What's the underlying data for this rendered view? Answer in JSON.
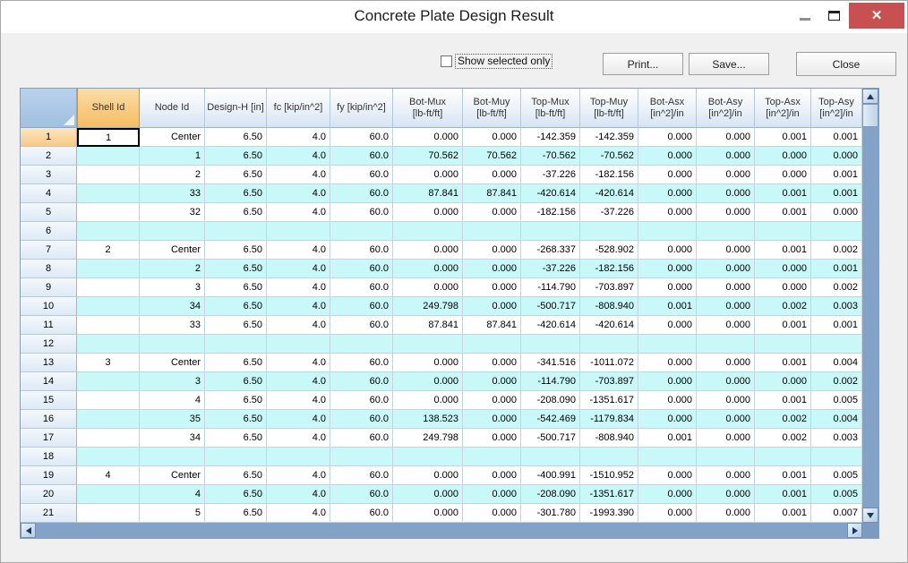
{
  "window": {
    "title": "Concrete Plate Design Result"
  },
  "toolbar": {
    "checkbox_label": "Show selected only",
    "checkbox_checked": false,
    "print_label": "Print...",
    "save_label": "Save...",
    "close_label": "Close"
  },
  "colors": {
    "selected_header_orange": "#f5bc63",
    "row_stripe_cyan": "#c9f8f8",
    "scrollbar_track_blue": "#82a3c7",
    "titlebar_close_red": "#c85050"
  },
  "grid": {
    "selection": {
      "selected_row_number": "1",
      "selected_column": "Shell Id",
      "active_cell_value": "1"
    },
    "columns": [
      "Shell Id",
      "Node Id",
      "Design-H [in]",
      "fc [kip/in^2]",
      "fy [kip/in^2]",
      "Bot-Mux\n[lb-ft/ft]",
      "Bot-Muy\n[lb-ft/ft]",
      "Top-Mux\n[lb-ft/ft]",
      "Top-Muy\n[lb-ft/ft]",
      "Bot-Asx\n[in^2]/in",
      "Bot-Asy\n[in^2]/in",
      "Top-Asx\n[in^2]/in",
      "Top-Asy\n[in^2]/in"
    ],
    "rows": [
      {
        "num": "1",
        "cells": [
          "1",
          "Center",
          "6.50",
          "4.0",
          "60.0",
          "0.000",
          "0.000",
          "-142.359",
          "-142.359",
          "0.000",
          "0.000",
          "0.001",
          "0.001"
        ]
      },
      {
        "num": "2",
        "cells": [
          "",
          "1",
          "6.50",
          "4.0",
          "60.0",
          "70.562",
          "70.562",
          "-70.562",
          "-70.562",
          "0.000",
          "0.000",
          "0.000",
          "0.000"
        ]
      },
      {
        "num": "3",
        "cells": [
          "",
          "2",
          "6.50",
          "4.0",
          "60.0",
          "0.000",
          "0.000",
          "-37.226",
          "-182.156",
          "0.000",
          "0.000",
          "0.000",
          "0.001"
        ]
      },
      {
        "num": "4",
        "cells": [
          "",
          "33",
          "6.50",
          "4.0",
          "60.0",
          "87.841",
          "87.841",
          "-420.614",
          "-420.614",
          "0.000",
          "0.000",
          "0.001",
          "0.001"
        ]
      },
      {
        "num": "5",
        "cells": [
          "",
          "32",
          "6.50",
          "4.0",
          "60.0",
          "0.000",
          "0.000",
          "-182.156",
          "-37.226",
          "0.000",
          "0.000",
          "0.001",
          "0.000"
        ]
      },
      {
        "num": "6",
        "cells": [
          "",
          "",
          "",
          "",
          "",
          "",
          "",
          "",
          "",
          "",
          "",
          "",
          ""
        ]
      },
      {
        "num": "7",
        "cells": [
          "2",
          "Center",
          "6.50",
          "4.0",
          "60.0",
          "0.000",
          "0.000",
          "-268.337",
          "-528.902",
          "0.000",
          "0.000",
          "0.001",
          "0.002"
        ]
      },
      {
        "num": "8",
        "cells": [
          "",
          "2",
          "6.50",
          "4.0",
          "60.0",
          "0.000",
          "0.000",
          "-37.226",
          "-182.156",
          "0.000",
          "0.000",
          "0.000",
          "0.001"
        ]
      },
      {
        "num": "9",
        "cells": [
          "",
          "3",
          "6.50",
          "4.0",
          "60.0",
          "0.000",
          "0.000",
          "-114.790",
          "-703.897",
          "0.000",
          "0.000",
          "0.000",
          "0.002"
        ]
      },
      {
        "num": "10",
        "cells": [
          "",
          "34",
          "6.50",
          "4.0",
          "60.0",
          "249.798",
          "0.000",
          "-500.717",
          "-808.940",
          "0.001",
          "0.000",
          "0.002",
          "0.003"
        ]
      },
      {
        "num": "11",
        "cells": [
          "",
          "33",
          "6.50",
          "4.0",
          "60.0",
          "87.841",
          "87.841",
          "-420.614",
          "-420.614",
          "0.000",
          "0.000",
          "0.001",
          "0.001"
        ]
      },
      {
        "num": "12",
        "cells": [
          "",
          "",
          "",
          "",
          "",
          "",
          "",
          "",
          "",
          "",
          "",
          "",
          ""
        ]
      },
      {
        "num": "13",
        "cells": [
          "3",
          "Center",
          "6.50",
          "4.0",
          "60.0",
          "0.000",
          "0.000",
          "-341.516",
          "-1011.072",
          "0.000",
          "0.000",
          "0.001",
          "0.004"
        ]
      },
      {
        "num": "14",
        "cells": [
          "",
          "3",
          "6.50",
          "4.0",
          "60.0",
          "0.000",
          "0.000",
          "-114.790",
          "-703.897",
          "0.000",
          "0.000",
          "0.000",
          "0.002"
        ]
      },
      {
        "num": "15",
        "cells": [
          "",
          "4",
          "6.50",
          "4.0",
          "60.0",
          "0.000",
          "0.000",
          "-208.090",
          "-1351.617",
          "0.000",
          "0.000",
          "0.001",
          "0.005"
        ]
      },
      {
        "num": "16",
        "cells": [
          "",
          "35",
          "6.50",
          "4.0",
          "60.0",
          "138.523",
          "0.000",
          "-542.469",
          "-1179.834",
          "0.000",
          "0.000",
          "0.002",
          "0.004"
        ]
      },
      {
        "num": "17",
        "cells": [
          "",
          "34",
          "6.50",
          "4.0",
          "60.0",
          "249.798",
          "0.000",
          "-500.717",
          "-808.940",
          "0.001",
          "0.000",
          "0.002",
          "0.003"
        ]
      },
      {
        "num": "18",
        "cells": [
          "",
          "",
          "",
          "",
          "",
          "",
          "",
          "",
          "",
          "",
          "",
          "",
          ""
        ]
      },
      {
        "num": "19",
        "cells": [
          "4",
          "Center",
          "6.50",
          "4.0",
          "60.0",
          "0.000",
          "0.000",
          "-400.991",
          "-1510.952",
          "0.000",
          "0.000",
          "0.001",
          "0.005"
        ]
      },
      {
        "num": "20",
        "cells": [
          "",
          "4",
          "6.50",
          "4.0",
          "60.0",
          "0.000",
          "0.000",
          "-208.090",
          "-1351.617",
          "0.000",
          "0.000",
          "0.001",
          "0.005"
        ]
      },
      {
        "num": "21",
        "cells": [
          "",
          "5",
          "6.50",
          "4.0",
          "60.0",
          "0.000",
          "0.000",
          "-301.780",
          "-1993.390",
          "0.000",
          "0.000",
          "0.001",
          "0.007"
        ]
      }
    ]
  }
}
